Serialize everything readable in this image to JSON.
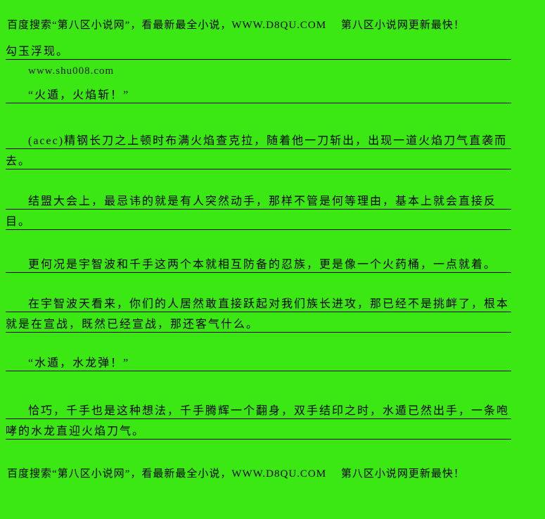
{
  "page": {
    "background_color": "#3CE813",
    "text_color": "#000000",
    "rule_color": "#000000"
  },
  "banner_top": {
    "text": "百度搜索“第八区小说网”，看最新最全小说，WWW.D8QU.COM　 第八区小说网更新最快！",
    "site_name": "第八区小说网",
    "site_url": "WWW.D8QU.COM"
  },
  "watermark": {
    "text": "www.shu008.com"
  },
  "paragraphs": [
    {
      "text": "勾玉浮现。"
    },
    {
      "text": "“火遁，火焰斩！”"
    },
    {
      "text": "(acec)精钢长刀之上顿时布满火焰查克拉，随着他一刀斩出，出现一道火焰刀气直袭而去。"
    },
    {
      "text": "结盟大会上，最忌讳的就是有人突然动手，那样不管是何等理由，基本上就会直接反目。"
    },
    {
      "text": "更何况是宇智波和千手这两个本就相互防备的忍族，更是像一个火药桶，一点就着。"
    },
    {
      "text": "在宇智波天看来，你们的人居然敢直接跃起对我们族长进攻，那已经不是挑衅了，根本就是在宣战，既然已经宣战，那还客气什么。"
    },
    {
      "text": "“水遁，水龙弹！”"
    },
    {
      "text": "恰巧，千手也是这种想法，千手腾辉一个翻身，双手结印之时，水遁已然出手，一条咆哮的水龙直迎火焰刀气。"
    }
  ],
  "banner_bottom": {
    "text": "百度搜索“第八区小说网”，看最新最全小说，WWW.D8QU.COM　 第八区小说网更新最快！"
  }
}
